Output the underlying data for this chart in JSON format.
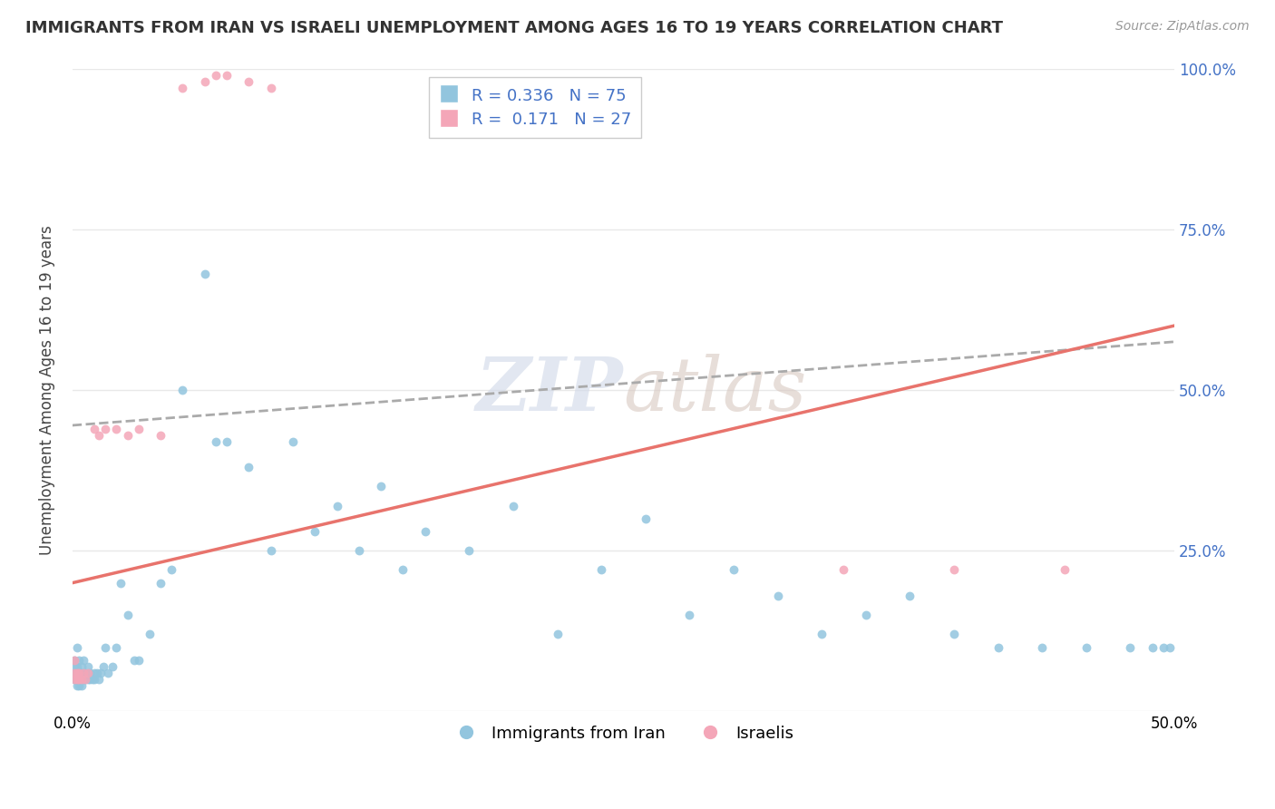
{
  "title": "IMMIGRANTS FROM IRAN VS ISRAELI UNEMPLOYMENT AMONG AGES 16 TO 19 YEARS CORRELATION CHART",
  "source": "Source: ZipAtlas.com",
  "ylabel": "Unemployment Among Ages 16 to 19 years",
  "blue_R": 0.336,
  "blue_N": 75,
  "pink_R": 0.171,
  "pink_N": 27,
  "blue_color": "#92c5de",
  "pink_color": "#f4a6b8",
  "blue_trend_color": "#e8736c",
  "gray_trend_color": "#aaaaaa",
  "watermark": "ZIPAtlas",
  "blue_trend_x": [
    0.0,
    0.5
  ],
  "blue_trend_y": [
    0.2,
    0.6
  ],
  "pink_trend_x": [
    0.0,
    0.5
  ],
  "pink_trend_y": [
    0.445,
    0.575
  ],
  "blue_x": [
    0.001,
    0.001,
    0.001,
    0.001,
    0.002,
    0.002,
    0.002,
    0.002,
    0.002,
    0.003,
    0.003,
    0.003,
    0.003,
    0.004,
    0.004,
    0.004,
    0.005,
    0.005,
    0.005,
    0.006,
    0.006,
    0.007,
    0.007,
    0.008,
    0.008,
    0.009,
    0.01,
    0.01,
    0.011,
    0.012,
    0.013,
    0.014,
    0.015,
    0.016,
    0.018,
    0.02,
    0.022,
    0.025,
    0.028,
    0.03,
    0.035,
    0.04,
    0.045,
    0.05,
    0.06,
    0.065,
    0.07,
    0.08,
    0.09,
    0.1,
    0.11,
    0.12,
    0.13,
    0.14,
    0.15,
    0.16,
    0.18,
    0.2,
    0.22,
    0.24,
    0.26,
    0.28,
    0.3,
    0.32,
    0.34,
    0.36,
    0.38,
    0.4,
    0.42,
    0.44,
    0.46,
    0.48,
    0.49,
    0.495,
    0.498
  ],
  "blue_y": [
    0.05,
    0.06,
    0.07,
    0.08,
    0.04,
    0.05,
    0.06,
    0.07,
    0.1,
    0.04,
    0.05,
    0.06,
    0.08,
    0.04,
    0.06,
    0.07,
    0.05,
    0.06,
    0.08,
    0.05,
    0.06,
    0.05,
    0.07,
    0.05,
    0.06,
    0.05,
    0.05,
    0.06,
    0.06,
    0.05,
    0.06,
    0.07,
    0.1,
    0.06,
    0.07,
    0.1,
    0.2,
    0.15,
    0.08,
    0.08,
    0.12,
    0.2,
    0.22,
    0.5,
    0.68,
    0.42,
    0.42,
    0.38,
    0.25,
    0.42,
    0.28,
    0.32,
    0.25,
    0.35,
    0.22,
    0.28,
    0.25,
    0.32,
    0.12,
    0.22,
    0.3,
    0.15,
    0.22,
    0.18,
    0.12,
    0.15,
    0.18,
    0.12,
    0.1,
    0.1,
    0.1,
    0.1,
    0.1,
    0.1,
    0.1
  ],
  "pink_x": [
    0.001,
    0.001,
    0.001,
    0.002,
    0.002,
    0.003,
    0.003,
    0.004,
    0.005,
    0.006,
    0.007,
    0.01,
    0.012,
    0.015,
    0.02,
    0.025,
    0.03,
    0.04,
    0.05,
    0.06,
    0.065,
    0.07,
    0.08,
    0.09,
    0.35,
    0.4,
    0.45
  ],
  "pink_y": [
    0.05,
    0.06,
    0.08,
    0.05,
    0.06,
    0.05,
    0.06,
    0.05,
    0.06,
    0.05,
    0.06,
    0.44,
    0.43,
    0.44,
    0.44,
    0.43,
    0.44,
    0.43,
    0.97,
    0.98,
    0.99,
    0.99,
    0.98,
    0.97,
    0.22,
    0.22,
    0.22
  ],
  "xlim": [
    0.0,
    0.5
  ],
  "ylim": [
    0.0,
    1.0
  ],
  "yticks": [
    0.0,
    0.25,
    0.5,
    0.75,
    1.0
  ],
  "xticks": [
    0.0,
    0.5
  ],
  "background_color": "#ffffff",
  "grid_color": "#e8e8e8"
}
